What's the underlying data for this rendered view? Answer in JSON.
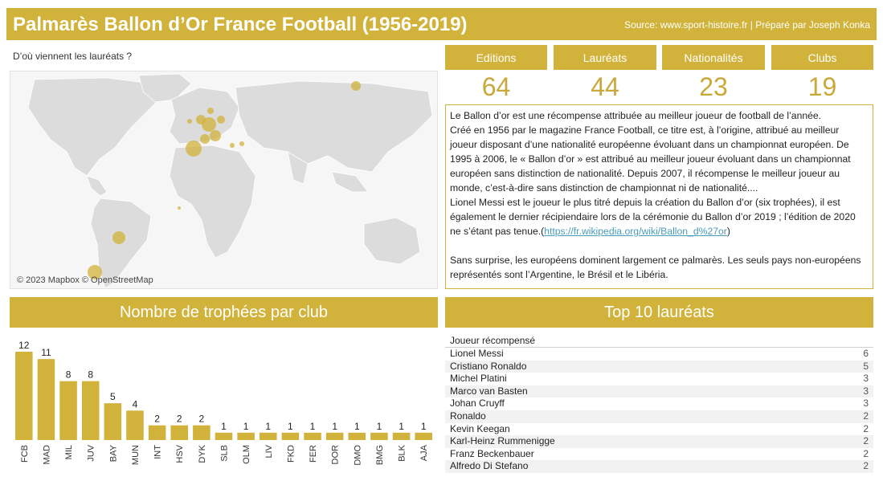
{
  "header": {
    "title": "Palmarès Ballon d’Or France Football (1956-2019)",
    "source": "Source: www.sport-histoire.fr | Préparé par Joseph Konka"
  },
  "map": {
    "caption": "D’où viennent les lauréats ?",
    "credit": "© 2023 Mapbox © OpenStreetMap"
  },
  "kpis": [
    {
      "label": "Editions",
      "value": "64"
    },
    {
      "label": "Lauréats",
      "value": "44"
    },
    {
      "label": "Nationalités",
      "value": "23"
    },
    {
      "label": "Clubs",
      "value": "19"
    }
  ],
  "description": {
    "p1": "Le Ballon d’or est une récompense attribuée au meilleur joueur de football de l’année.",
    "p2": "Créé en 1956 par le magazine France Football, ce titre est, à l’origine, attribué au meilleur joueur disposant d’une nationalité européenne évoluant dans un championnat européen. De 1995 à 2006, le « Ballon d’or » est attribué au meilleur joueur évoluant dans un championnat européen sans distinction de nationalité. Depuis 2007, il récompense le meilleur joueur au monde, c’est-à-dire sans distinction de championnat ni de nationalité....",
    "p3": "Lionel Messi est le joueur le plus titré depuis la création du Ballon d’or (six trophées), il est également le dernier récipiendaire lors de la cérémonie du Ballon d’or 2019 ; l’édition de 2020 ne s’étant pas tenue.(",
    "link": "https://fr.wikipedia.org/wiki/Ballon_d%27or",
    "p3_end": ")",
    "p4": "Sans surprise, les européens dominent largement ce palmarès. Les seuls pays non-européens représentés sont l’Argentine, le Brésil et le Libéria."
  },
  "clubs_panel": {
    "title": "Nombre de trophées par club"
  },
  "top10_panel": {
    "title": "Top 10 lauréats",
    "column": "Joueur récompensé"
  },
  "chart_data": {
    "type": "bar",
    "categories": [
      "FCB",
      "MAD",
      "MIL",
      "JUV",
      "BAY",
      "MUN",
      "INT",
      "HSV",
      "DYK",
      "SLB",
      "OLM",
      "LIV",
      "FKD",
      "FER",
      "DOR",
      "DMO",
      "BMG",
      "BLK",
      "AJA"
    ],
    "values": [
      12,
      11,
      8,
      8,
      5,
      4,
      2,
      2,
      2,
      1,
      1,
      1,
      1,
      1,
      1,
      1,
      1,
      1,
      1
    ],
    "ylim": [
      0,
      12
    ],
    "color": "#d1b23a"
  },
  "top10": [
    {
      "name": "Lionel Messi",
      "value": "6"
    },
    {
      "name": "Cristiano Ronaldo",
      "value": "5"
    },
    {
      "name": "Michel Platini",
      "value": "3"
    },
    {
      "name": "Marco van Basten",
      "value": "3"
    },
    {
      "name": "Johan Cruyff",
      "value": "3"
    },
    {
      "name": "Ronaldo",
      "value": "2"
    },
    {
      "name": "Kevin Keegan",
      "value": "2"
    },
    {
      "name": "Karl-Heinz Rummenigge",
      "value": "2"
    },
    {
      "name": "Franz Beckenbauer",
      "value": "2"
    },
    {
      "name": "Alfredo Di Stefano",
      "value": "2"
    }
  ]
}
